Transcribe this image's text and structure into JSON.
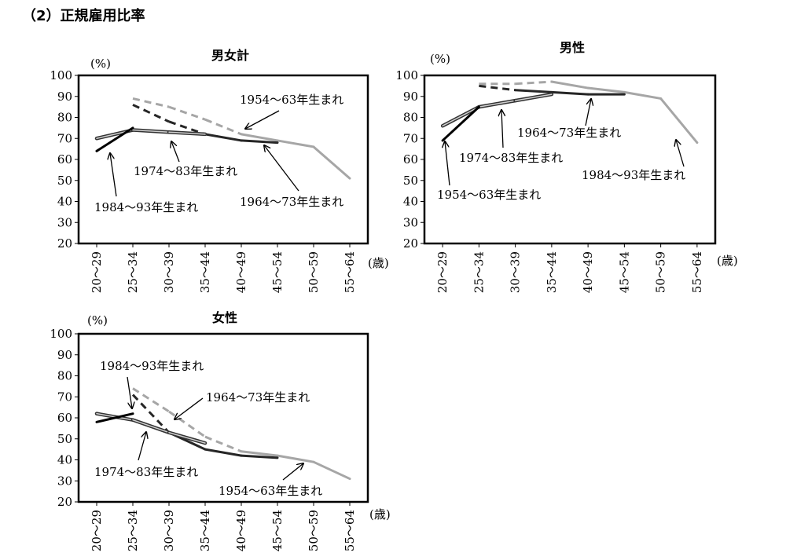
{
  "page_title": "（2）正規雇用比率",
  "chart_data": [
    {
      "type": "line",
      "title": "男女計",
      "y_unit": "(%)",
      "x_unit": "(歳)",
      "categories": [
        "20～29",
        "25～34",
        "30～39",
        "35～44",
        "40～49",
        "45～54",
        "50～59",
        "55～64"
      ],
      "ylim": [
        20,
        100
      ],
      "yticks": [
        20,
        30,
        40,
        50,
        60,
        70,
        80,
        90,
        100
      ],
      "series": [
        {
          "name": "1954～63年生まれ",
          "color": "#a6a6a6",
          "values": [
            null,
            89,
            85,
            79,
            72,
            69,
            66,
            51
          ],
          "dash_until": 4
        },
        {
          "name": "1964～73年生まれ",
          "color": "#262626",
          "values": [
            null,
            86,
            78,
            72,
            69,
            68,
            null,
            null
          ],
          "dash_until": 3
        },
        {
          "name": "1974～83年生まれ",
          "color": "#7f7f7f",
          "values": [
            70,
            74,
            73,
            72,
            null,
            null,
            null,
            null
          ],
          "dash_until": 0,
          "double": true
        },
        {
          "name": "1984～93年生まれ",
          "color": "#000000",
          "values": [
            64,
            75,
            null,
            null,
            null,
            null,
            null,
            null
          ],
          "dash_until": 0
        }
      ],
      "labels": [
        {
          "text": "1954～63年生まれ"
        },
        {
          "text": "1974～83年生まれ"
        },
        {
          "text": "1984～93年生まれ"
        },
        {
          "text": "1964～73年生まれ"
        }
      ]
    },
    {
      "type": "line",
      "title": "男性",
      "y_unit": "(%)",
      "x_unit": "(歳)",
      "categories": [
        "20～29",
        "25～34",
        "30～39",
        "35～44",
        "40～49",
        "45～54",
        "50～59",
        "55～64"
      ],
      "ylim": [
        20,
        100
      ],
      "yticks": [
        20,
        30,
        40,
        50,
        60,
        70,
        80,
        90,
        100
      ],
      "series": [
        {
          "name": "1954～63年生まれ",
          "color": "#a6a6a6",
          "values": [
            null,
            96,
            96,
            97,
            94,
            92,
            89,
            68
          ],
          "dash_until": 3
        },
        {
          "name": "1964～73年生まれ",
          "color": "#262626",
          "values": [
            null,
            95,
            93,
            92,
            91,
            91,
            null,
            null
          ],
          "dash_until": 2
        },
        {
          "name": "1974～83年生まれ",
          "color": "#7f7f7f",
          "values": [
            76,
            85,
            88,
            91,
            null,
            null,
            null,
            null
          ],
          "dash_until": 0,
          "double": true
        },
        {
          "name": "1984～93年生まれ",
          "color": "#000000",
          "values": [
            69,
            85,
            null,
            null,
            null,
            null,
            null,
            null
          ],
          "dash_until": 0
        }
      ],
      "labels": [
        {
          "text": "1964～73年生まれ"
        },
        {
          "text": "1974～83年生まれ"
        },
        {
          "text": "1954～63年生まれ"
        },
        {
          "text": "1984～93年生まれ"
        }
      ]
    },
    {
      "type": "line",
      "title": "女性",
      "y_unit": "(%)",
      "x_unit": "(歳)",
      "categories": [
        "20～29",
        "25～34",
        "30～39",
        "35～44",
        "40～49",
        "45～54",
        "50～59",
        "55～64"
      ],
      "ylim": [
        20,
        100
      ],
      "yticks": [
        20,
        30,
        40,
        50,
        60,
        70,
        80,
        90,
        100
      ],
      "series": [
        {
          "name": "1954～63年生まれ",
          "color": "#a6a6a6",
          "values": [
            null,
            74,
            63,
            51,
            44,
            42,
            39,
            31
          ],
          "dash_until": 4
        },
        {
          "name": "1964～73年生まれ",
          "color": "#262626",
          "values": [
            null,
            71,
            53,
            45,
            42,
            41,
            null,
            null
          ],
          "dash_until": 2
        },
        {
          "name": "1974～83年生まれ",
          "color": "#7f7f7f",
          "values": [
            62,
            59,
            53,
            48,
            null,
            null,
            null,
            null
          ],
          "dash_until": 0,
          "double": true
        },
        {
          "name": "1984～93年生まれ",
          "color": "#000000",
          "values": [
            58,
            62,
            null,
            null,
            null,
            null,
            null,
            null
          ],
          "dash_until": 0
        }
      ],
      "labels": [
        {
          "text": "1984～93年生まれ"
        },
        {
          "text": "1964～73年生まれ"
        },
        {
          "text": "1974～83年生まれ"
        },
        {
          "text": "1954～63年生まれ"
        }
      ]
    }
  ]
}
